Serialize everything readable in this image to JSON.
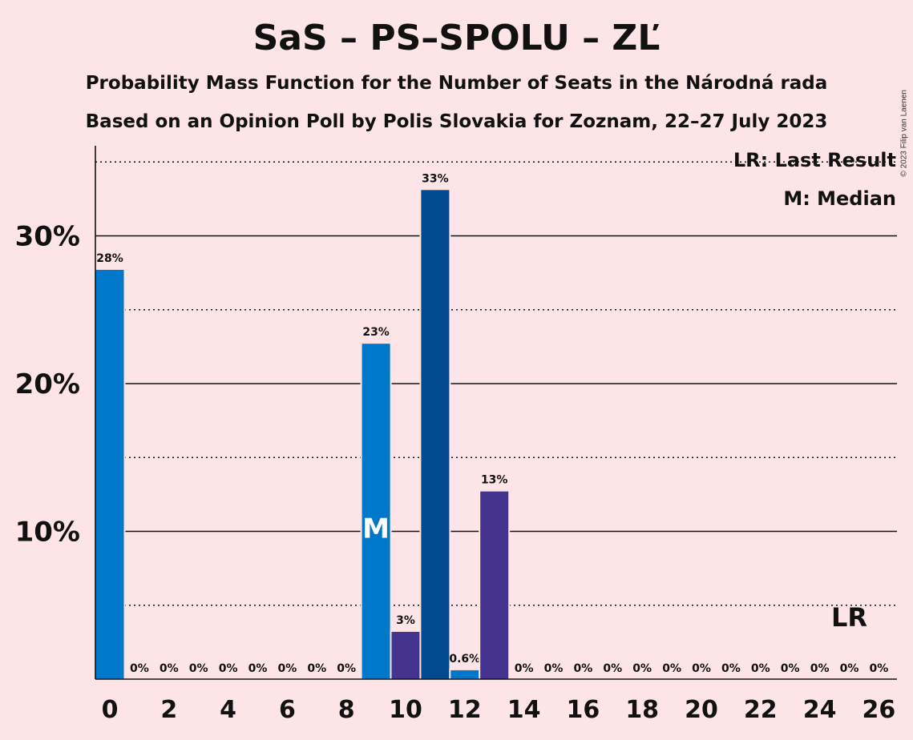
{
  "title": "SaS – PS–SPOLU – ZĽ",
  "subtitle1": "Probability Mass Function for the Number of Seats in the Národná rada",
  "subtitle2": "Based on an Opinion Poll by Polis Slovakia for Zoznam, 22–27 July 2023",
  "copyright": "© 2023 Filip van Laenen",
  "legend": {
    "lr": "LR: Last Result",
    "median": "M: Median"
  },
  "chart_data": {
    "type": "bar",
    "x": [
      0,
      1,
      2,
      3,
      4,
      5,
      6,
      7,
      8,
      9,
      10,
      11,
      12,
      13,
      14,
      15,
      16,
      17,
      18,
      19,
      20,
      21,
      22,
      23,
      24,
      25,
      26
    ],
    "values": [
      27.7,
      0,
      0,
      0,
      0,
      0,
      0,
      0,
      0,
      22.7,
      3.2,
      33.1,
      0.6,
      12.7,
      0,
      0,
      0,
      0,
      0,
      0,
      0,
      0,
      0,
      0,
      0,
      0,
      0
    ],
    "data_labels": [
      "28%",
      "0%",
      "0%",
      "0%",
      "0%",
      "0%",
      "0%",
      "0%",
      "0%",
      "23%",
      "3%",
      "33%",
      "0.6%",
      "13%",
      "0%",
      "0%",
      "0%",
      "0%",
      "0%",
      "0%",
      "0%",
      "0%",
      "0%",
      "0%",
      "0%",
      "0%",
      "0%"
    ],
    "bar_colors": [
      "#0077c8",
      "#0077c8",
      "#0077c8",
      "#0077c8",
      "#0077c8",
      "#0077c8",
      "#0077c8",
      "#0077c8",
      "#0077c8",
      "#0077c8",
      "#45348f",
      "#004a90",
      "#0077c8",
      "#45348f",
      "#0077c8",
      "#0077c8",
      "#0077c8",
      "#0077c8",
      "#0077c8",
      "#0077c8",
      "#0077c8",
      "#0077c8",
      "#0077c8",
      "#0077c8",
      "#0077c8",
      "#0077c8",
      "#0077c8"
    ],
    "x_ticks": [
      "0",
      "2",
      "4",
      "6",
      "8",
      "10",
      "12",
      "14",
      "16",
      "18",
      "20",
      "22",
      "24",
      "26"
    ],
    "y_ticks": [
      "10%",
      "20%",
      "30%"
    ],
    "ylim": [
      0,
      36
    ],
    "grid": "solid lines at 10% steps, dotted lines at 5% steps",
    "median_seat": 9,
    "median_marker": "M",
    "last_result_seat": 25,
    "last_result_marker": "LR",
    "legend_placement": "top-right"
  }
}
